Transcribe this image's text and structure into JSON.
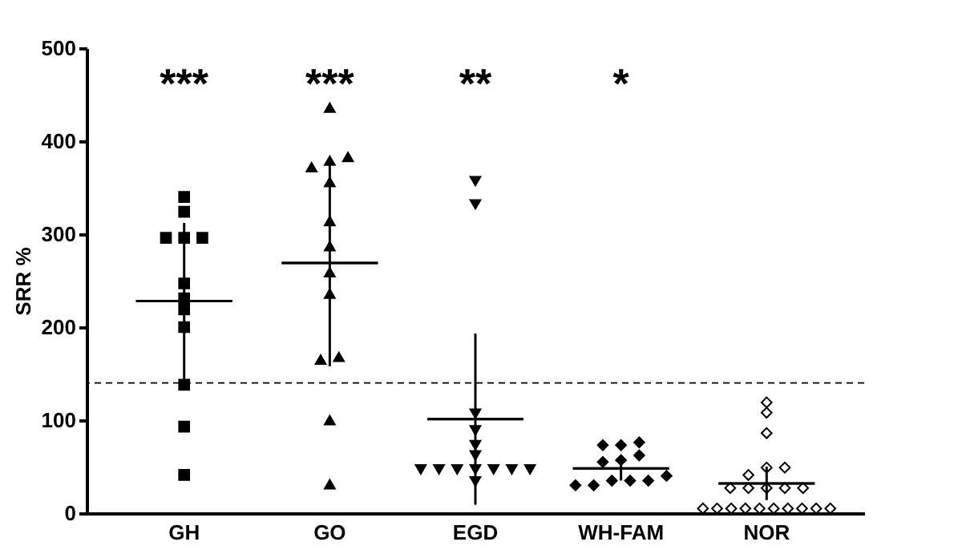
{
  "chart_data": {
    "type": "scatter",
    "ylabel": "SRR %",
    "categories": [
      "GH",
      "GO",
      "EGD",
      "WH-FAM",
      "NOR"
    ],
    "ylim": [
      0,
      500
    ],
    "yticks": [
      0,
      100,
      200,
      300,
      400,
      500
    ],
    "grid": false,
    "legend": false,
    "series": [
      {
        "marker": "square",
        "color": "#000000",
        "x": [
          "GH",
          "GH",
          "GH",
          "GH",
          "GH",
          "GH",
          "GH",
          "GH",
          "GH",
          "GH",
          "GH",
          "GH"
        ],
        "values": [
          340,
          324,
          296,
          296,
          296,
          247,
          231,
          219,
          200,
          138,
          93,
          41
        ]
      },
      {
        "marker": "triangle",
        "color": "#000000",
        "x": [
          "GO",
          "GO",
          "GO",
          "GO",
          "GO",
          "GO",
          "GO",
          "GO",
          "GO",
          "GO",
          "GO",
          "GO",
          "GO"
        ],
        "values": [
          436,
          372,
          379,
          383,
          356,
          314,
          287,
          259,
          236,
          165,
          168,
          100,
          31
        ]
      },
      {
        "marker": "triangle-down",
        "color": "#000000",
        "x": [
          "EGD",
          "EGD",
          "EGD",
          "EGD",
          "EGD",
          "EGD",
          "EGD",
          "EGD",
          "EGD",
          "EGD",
          "EGD",
          "EGD",
          "EGD",
          "EGD"
        ],
        "values": [
          357,
          332,
          107,
          89,
          73,
          62,
          47,
          47,
          47,
          47,
          34,
          47,
          47,
          47
        ]
      },
      {
        "marker": "diamond",
        "color": "#000000",
        "x": [
          "WH-FAM",
          "WH-FAM",
          "WH-FAM",
          "WH-FAM",
          "WH-FAM",
          "WH-FAM",
          "WH-FAM",
          "WH-FAM",
          "WH-FAM",
          "WH-FAM",
          "WH-FAM",
          "WH-FAM"
        ],
        "values": [
          76,
          73,
          73,
          62,
          57,
          55,
          40,
          35,
          35,
          30,
          30,
          35
        ]
      },
      {
        "marker": "diamond",
        "color": "#ffffff",
        "x": [
          "NOR",
          "NOR",
          "NOR",
          "NOR",
          "NOR",
          "NOR",
          "NOR",
          "NOR",
          "NOR",
          "NOR",
          "NOR",
          "NOR",
          "NOR",
          "NOR",
          "NOR",
          "NOR",
          "NOR",
          "NOR",
          "NOR",
          "NOR",
          "NOR"
        ],
        "values": [
          119,
          108,
          86,
          49,
          49,
          41,
          27,
          27,
          27,
          27,
          27,
          5,
          5,
          5,
          5,
          5,
          5,
          5,
          5,
          5,
          5
        ]
      },
      {
        "type": "box",
        "color": "#000000",
        "boxes": [
          {
            "low": 144,
            "q1": 228,
            "median": 228,
            "q3": 228,
            "high": 312
          },
          {
            "low": 158,
            "q1": 269,
            "median": 269,
            "q3": 269,
            "high": 380
          },
          {
            "low": 9,
            "q1": 101,
            "median": 101,
            "q3": 101,
            "high": 193
          },
          {
            "low": 35,
            "q1": 48,
            "median": 48,
            "q3": 48,
            "high": 61
          },
          {
            "low": 14,
            "q1": 32,
            "median": 32,
            "q3": 32,
            "high": 50
          }
        ]
      }
    ],
    "ref_lines": [
      {
        "axis": "y",
        "value": 140,
        "line_style": "dashed",
        "color": "#000000"
      }
    ],
    "annotations": [
      "***",
      "***",
      "**",
      "*"
    ]
  }
}
